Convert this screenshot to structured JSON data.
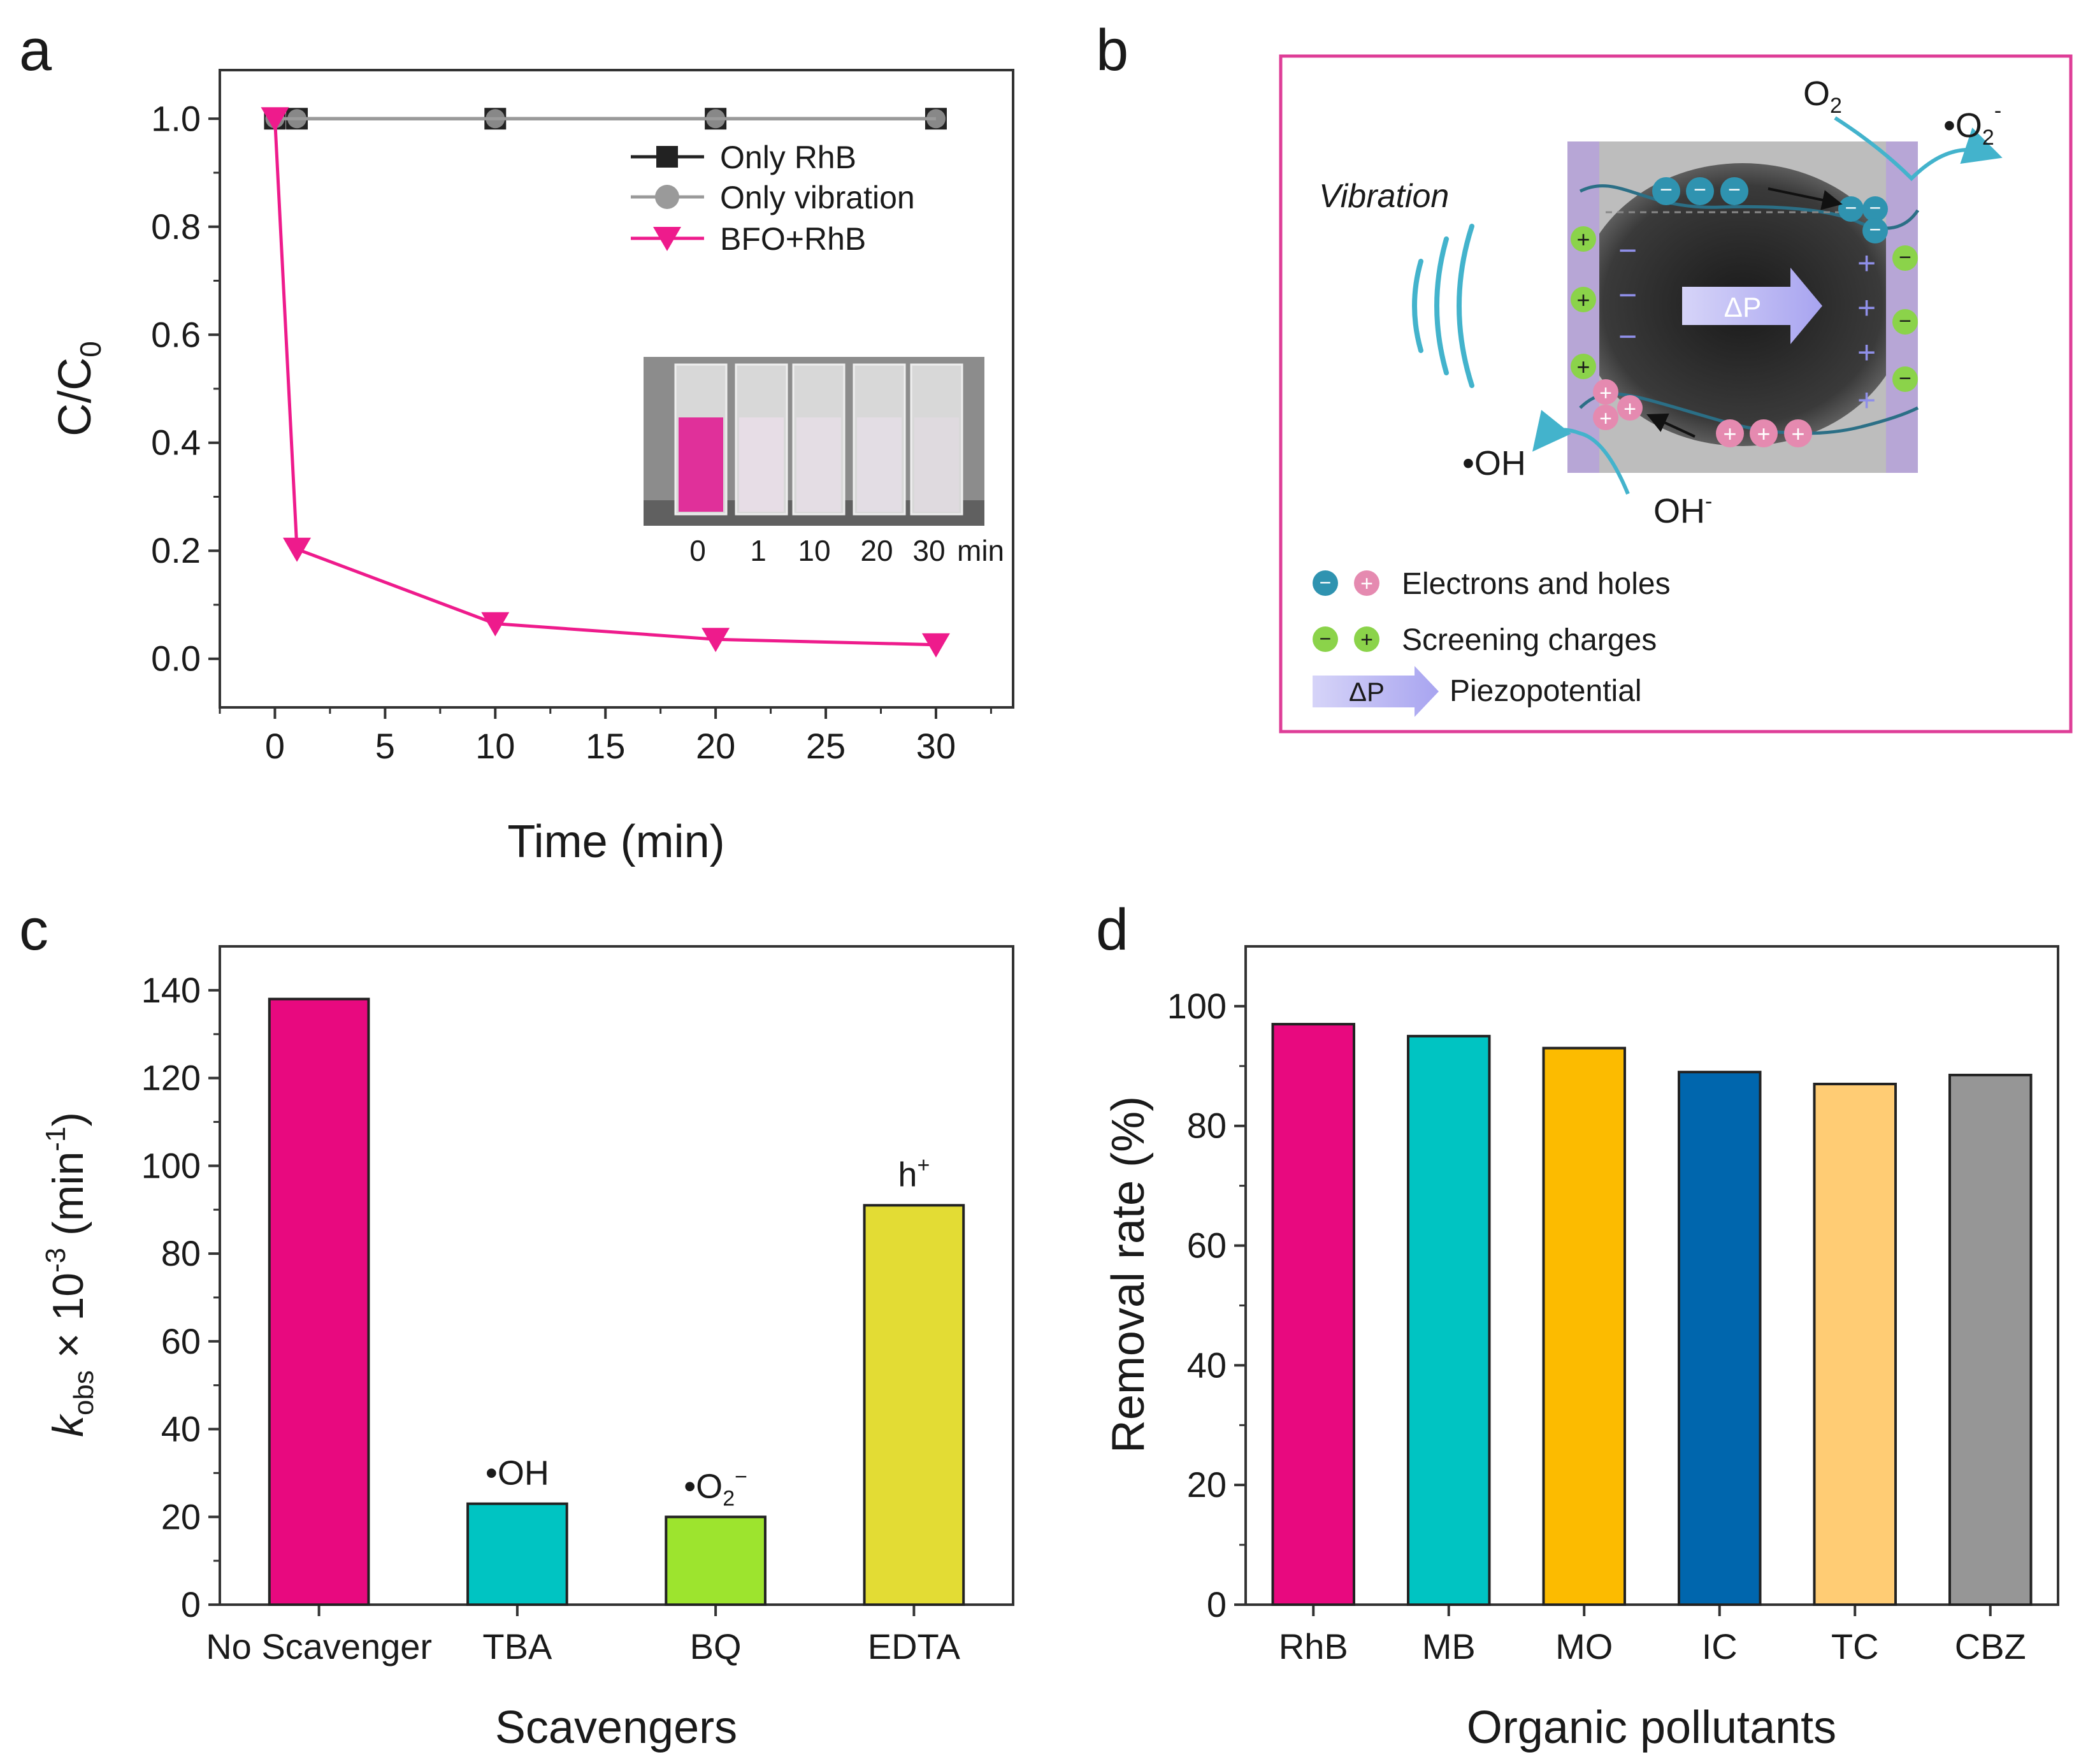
{
  "panels": {
    "a": {
      "letter": "a"
    },
    "b": {
      "letter": "b",
      "vibration_label": "Vibration",
      "o2_label": "O",
      "o2_sub": "2",
      "superoxide_dot": "•",
      "superoxide_label": "O",
      "superoxide_sub": "2",
      "superoxide_sup": "-",
      "oh_radical_label": "•OH",
      "oh_ion_label": "OH",
      "oh_ion_sup": "-",
      "delta_p": "ΔP",
      "legend": {
        "electrons_holes": "Electrons and holes",
        "screening": "Screening charges",
        "piezo": "Piezopotential",
        "arrow_text": "ΔP"
      },
      "minus_sign": "−",
      "plus_sign": "+"
    },
    "c": {
      "letter": "c"
    },
    "d": {
      "letter": "d"
    }
  },
  "chart_data": [
    {
      "panel": "a",
      "type": "line",
      "xlabel": "Time (min)",
      "ylabel": "C/C",
      "ylabel_sub": "0",
      "xlim": [
        -2.5,
        33.5
      ],
      "ylim": [
        -0.09,
        1.09
      ],
      "xticks": [
        0,
        5,
        10,
        15,
        20,
        25,
        30
      ],
      "yticks": [
        0.0,
        0.2,
        0.4,
        0.6,
        0.8,
        1.0
      ],
      "ytick_labels": [
        "0.0",
        "0.2",
        "0.4",
        "0.6",
        "0.8",
        "1.0"
      ],
      "series": [
        {
          "name": "Only RhB",
          "marker": "square",
          "color": "#222222",
          "x": [
            0,
            1,
            10,
            20,
            30
          ],
          "y": [
            1.0,
            1.0,
            1.0,
            1.0,
            1.0
          ]
        },
        {
          "name": "Only vibration",
          "marker": "circle",
          "color": "#9a9a9a",
          "x": [
            0,
            1,
            10,
            20,
            30
          ],
          "y": [
            1.0,
            1.0,
            1.0,
            1.0,
            1.0
          ]
        },
        {
          "name": "BFO+RhB",
          "marker": "triangle-down",
          "color": "#ee1b8c",
          "x": [
            0,
            1,
            10,
            20,
            30
          ],
          "y": [
            1.0,
            0.203,
            0.065,
            0.036,
            0.026
          ]
        }
      ],
      "legend_position": "top-right",
      "inset": {
        "labels": [
          "0",
          "1",
          "10",
          "20",
          "30"
        ],
        "unit": "min",
        "vial_colors": [
          "#e0309a",
          "#e7dde6",
          "#e4dde4",
          "#e3dde4",
          "#dfdadf"
        ]
      }
    },
    {
      "panel": "c",
      "type": "bar",
      "xlabel": "Scavengers",
      "ylabel_var": "k",
      "ylabel_sub": "obs",
      "ylabel_mid": " × 10",
      "ylabel_exp": "-3",
      "ylabel_unit": "  (min",
      "ylabel_unit_exp": "-1",
      "ylabel_close": ")",
      "categories": [
        "No Scavenger",
        "TBA",
        "BQ",
        "EDTA"
      ],
      "values": [
        138,
        23,
        20,
        91
      ],
      "colors": [
        "#e8097f",
        "#00c4c2",
        "#9de42e",
        "#e3dc34"
      ],
      "ylim": [
        0,
        150
      ],
      "yticks": [
        0,
        20,
        40,
        60,
        80,
        100,
        120,
        140
      ],
      "ytick_labels": [
        "0",
        "20",
        "40",
        "60",
        "80",
        "100",
        "120",
        "140"
      ],
      "annotations": [
        {
          "category": "TBA",
          "text": "•OH",
          "sub": "",
          "sup": ""
        },
        {
          "category": "BQ",
          "text": "•O",
          "sub": "2",
          "sup": "−"
        },
        {
          "category": "EDTA",
          "text": "h",
          "sub": "",
          "sup": "+"
        }
      ]
    },
    {
      "panel": "d",
      "type": "bar",
      "xlabel": "Organic pollutants",
      "ylabel": "Removal rate (%)",
      "categories": [
        "RhB",
        "MB",
        "MO",
        "IC",
        "TC",
        "CBZ"
      ],
      "values": [
        97,
        95,
        93,
        89,
        87,
        88.5
      ],
      "colors": [
        "#e8097f",
        "#00c4c2",
        "#fcbb00",
        "#0066ad",
        "#ffcc74",
        "#969696"
      ],
      "ylim": [
        0,
        110
      ],
      "yticks": [
        0,
        20,
        40,
        60,
        80,
        100
      ],
      "ytick_labels": [
        "0",
        "20",
        "40",
        "60",
        "80",
        "100"
      ]
    }
  ]
}
